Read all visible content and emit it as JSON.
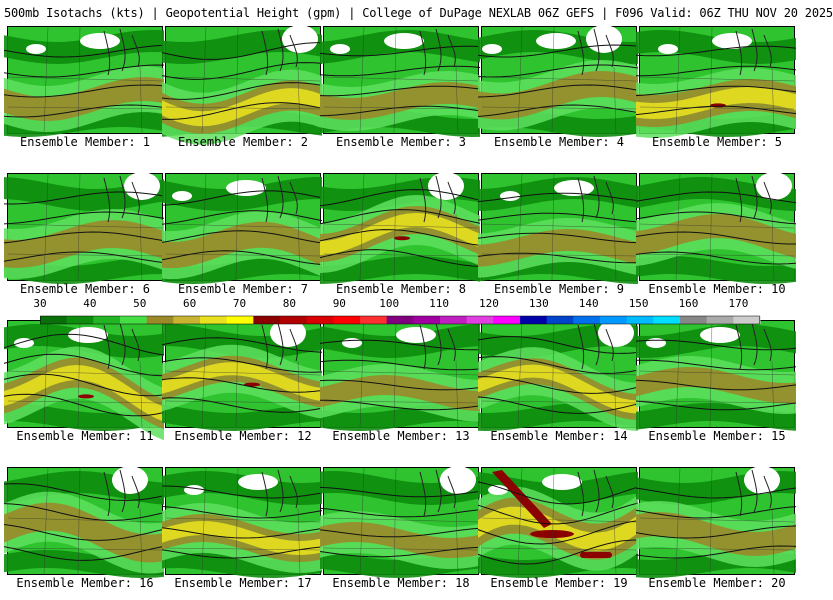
{
  "title": "500mb Isotachs (kts) | Geopotential Height (gpm) | College of DuPage NEXLAB   06Z GEFS | F096 Valid: 06Z THU NOV 20 2025",
  "colorbar": {
    "labels": [
      "30",
      "40",
      "50",
      "60",
      "70",
      "80",
      "90",
      "100",
      "110",
      "120",
      "130",
      "140",
      "150",
      "160",
      "170"
    ],
    "colors": [
      "#0a6e0a",
      "#0d8c0d",
      "#22b422",
      "#44dd44",
      "#9a8a2a",
      "#c8b432",
      "#e8e020",
      "#ffff00",
      "#8b0000",
      "#b00000",
      "#d80000",
      "#ff0000",
      "#ff3030",
      "#800080",
      "#a000a0",
      "#c020c0",
      "#e040e0",
      "#ff00ff",
      "#0000aa",
      "#0044cc",
      "#0070ee",
      "#0099ff",
      "#00bbff",
      "#00ddff",
      "#888888",
      "#aaaaaa",
      "#cccccc"
    ]
  },
  "palette": {
    "low": "#0d8c0d",
    "mid": "#2fc42f",
    "high": "#5ee05e",
    "olive": "#9a8a2a",
    "yellow": "#e8e020",
    "maroon": "#8b0000",
    "white": "#ffffff"
  },
  "members": [
    {
      "label": "Ensemble Member: 1"
    },
    {
      "label": "Ensemble Member: 2"
    },
    {
      "label": "Ensemble Member: 3"
    },
    {
      "label": "Ensemble Member: 4"
    },
    {
      "label": "Ensemble Member: 5"
    },
    {
      "label": "Ensemble Member: 6"
    },
    {
      "label": "Ensemble Member: 7"
    },
    {
      "label": "Ensemble Member: 8"
    },
    {
      "label": "Ensemble Member: 9"
    },
    {
      "label": "Ensemble Member: 10"
    },
    {
      "label": "Ensemble Member: 11"
    },
    {
      "label": "Ensemble Member: 12"
    },
    {
      "label": "Ensemble Member: 13"
    },
    {
      "label": "Ensemble Member: 14"
    },
    {
      "label": "Ensemble Member: 15"
    },
    {
      "label": "Ensemble Member: 16"
    },
    {
      "label": "Ensemble Member: 17"
    },
    {
      "label": "Ensemble Member: 18"
    },
    {
      "label": "Ensemble Member: 19"
    },
    {
      "label": "Ensemble Member: 20"
    }
  ]
}
